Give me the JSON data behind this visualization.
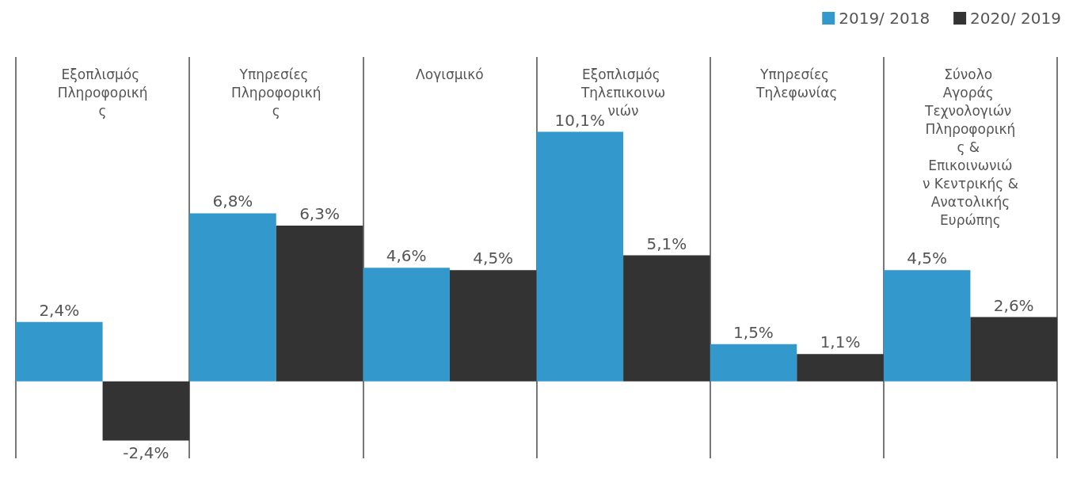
{
  "chart_data": {
    "type": "bar",
    "categories": [
      "Εξοπλισμός Πληροφορικής",
      "Υπηρεσίες Πληροφορικής",
      "Λογισμικό",
      "Εξοπλισμός Τηλεπικοινωνιών",
      "Υπηρεσίες Τηλεφωνίας",
      "Σύνολο Αγοράς Τεχνολογιών Πληροφορικής & Επικοινωνιών Κεντρικής & Ανατολικής Ευρώπης"
    ],
    "series": [
      {
        "name": "2019/ 2018",
        "color": "#3399cc",
        "values": [
          2.4,
          6.8,
          4.6,
          10.1,
          1.5,
          4.5
        ],
        "value_labels": [
          "2,4%",
          "6,8%",
          "4,6%",
          "10,1%",
          "1,5%",
          "4,5%"
        ]
      },
      {
        "name": "2020/ 2019",
        "color": "#333333",
        "values": [
          -2.4,
          6.3,
          4.5,
          5.1,
          1.1,
          2.6
        ],
        "value_labels": [
          "-2,4%",
          "6,3%",
          "4,5%",
          "5,1%",
          "1,1%",
          "2,6%"
        ]
      }
    ],
    "legend": "top right"
  }
}
